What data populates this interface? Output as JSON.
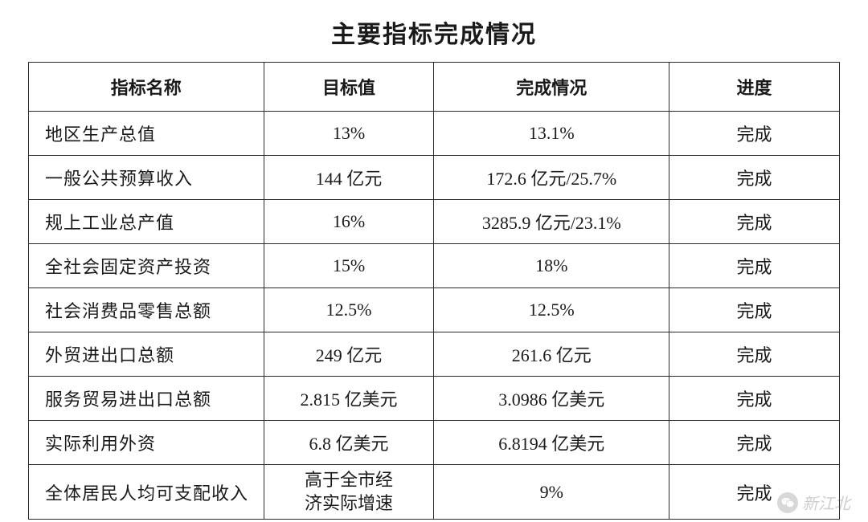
{
  "title": "主要指标完成情况",
  "columns": {
    "name": "指标名称",
    "target": "目标值",
    "actual": "完成情况",
    "status": "进度"
  },
  "rows": [
    {
      "name": "地区生产总值",
      "target": "13%",
      "actual": "13.1%",
      "status": "完成"
    },
    {
      "name": "一般公共预算收入",
      "target": "144 亿元",
      "actual": "172.6 亿元/25.7%",
      "status": "完成"
    },
    {
      "name": "规上工业总产值",
      "target": "16%",
      "actual": "3285.9 亿元/23.1%",
      "status": "完成"
    },
    {
      "name": "全社会固定资产投资",
      "target": "15%",
      "actual": "18%",
      "status": "完成"
    },
    {
      "name": "社会消费品零售总额",
      "target": "12.5%",
      "actual": "12.5%",
      "status": "完成"
    },
    {
      "name": "外贸进出口总额",
      "target": "249 亿元",
      "actual": "261.6 亿元",
      "status": "完成"
    },
    {
      "name": "服务贸易进出口总额",
      "target": "2.815 亿美元",
      "actual": "3.0986 亿美元",
      "status": "完成"
    },
    {
      "name": "实际利用外资",
      "target": "6.8 亿美元",
      "actual": "6.8194 亿美元",
      "status": "完成"
    },
    {
      "name": "全体居民人均可支配收入",
      "target": "高于全市经\n济实际增速",
      "actual": "9%",
      "status": "完成"
    }
  ],
  "watermark": {
    "text": "新江北"
  },
  "style": {
    "background_color": "#ffffff",
    "text_color": "#1a1a1a",
    "border_color": "#2a2a2a",
    "title_fontsize": 30,
    "header_fontsize": 22,
    "cell_fontsize": 22,
    "font_family": "SimSun",
    "column_widths": {
      "name": "29%",
      "target": "21%",
      "actual": "29%",
      "status": "21%"
    }
  }
}
